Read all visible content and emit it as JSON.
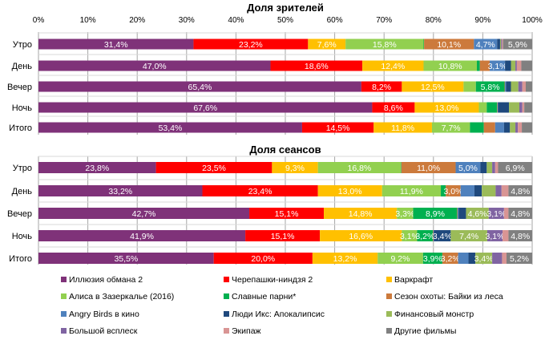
{
  "chart_data": [
    {
      "type": "bar",
      "orientation": "horizontal-stacked-100",
      "title": "Доля зрителей",
      "xlim": [
        0,
        100
      ],
      "xticks": [
        "0%",
        "10%",
        "20%",
        "30%",
        "40%",
        "50%",
        "60%",
        "70%",
        "80%",
        "90%",
        "100%"
      ],
      "categories": [
        "Утро",
        "День",
        "Вечер",
        "Ночь",
        "Итого"
      ],
      "values": [
        [
          31.4,
          23.2,
          7.6,
          15.8,
          0.1,
          10.1,
          4.7,
          0.6,
          0.2,
          0.2,
          0.2,
          5.9
        ],
        [
          47.0,
          18.6,
          12.4,
          10.8,
          0.6,
          2.0,
          3.1,
          1.2,
          0.9,
          0.3,
          0.9,
          2.2
        ],
        [
          65.4,
          8.2,
          12.5,
          2.5,
          5.8,
          0.1,
          0.2,
          1.0,
          1.5,
          0.8,
          0.7,
          1.3
        ],
        [
          67.6,
          8.6,
          13.0,
          1.6,
          2.1,
          0.1,
          0.1,
          2.2,
          2.1,
          0.6,
          0.4,
          1.6
        ],
        [
          53.4,
          14.5,
          11.8,
          7.7,
          2.8,
          2.3,
          1.8,
          1.2,
          1.1,
          0.5,
          0.8,
          2.1
        ]
      ],
      "labels": [
        [
          "31,4%",
          "23,2%",
          "7,6%",
          "15,8%",
          "",
          "10,1%",
          "4,7%",
          "",
          "",
          "",
          "",
          "5,9%"
        ],
        [
          "47,0%",
          "18,6%",
          "12,4%",
          "10,8%",
          "",
          "",
          "3,1%",
          "",
          "",
          "",
          "",
          ""
        ],
        [
          "65,4%",
          "8,2%",
          "12,5%",
          "",
          "5,8%",
          "",
          "",
          "",
          "",
          "",
          "",
          ""
        ],
        [
          "67,6%",
          "8,6%",
          "13,0%",
          "",
          "",
          "",
          "",
          "",
          "",
          "",
          "",
          ""
        ],
        [
          "53,4%",
          "14,5%",
          "11,8%",
          "7,7%",
          "",
          "",
          "",
          "",
          "",
          "",
          "",
          ""
        ]
      ]
    },
    {
      "type": "bar",
      "orientation": "horizontal-stacked-100",
      "title": "Доля сеансов",
      "xlim": [
        0,
        100
      ],
      "categories": [
        "Утро",
        "День",
        "Вечер",
        "Ночь",
        "Итого"
      ],
      "values": [
        [
          23.8,
          23.5,
          9.3,
          16.8,
          0.1,
          11.0,
          5.0,
          1.3,
          1.1,
          0.6,
          0.6,
          6.9
        ],
        [
          33.2,
          23.4,
          13.0,
          11.9,
          1.0,
          3.0,
          2.8,
          1.5,
          2.8,
          1.2,
          1.4,
          4.8
        ],
        [
          42.7,
          15.1,
          14.8,
          3.3,
          8.9,
          0.1,
          0.2,
          1.5,
          4.6,
          3.1,
          0.9,
          4.8
        ],
        [
          41.9,
          15.1,
          16.6,
          3.1,
          3.2,
          0.1,
          0.1,
          3.4,
          7.4,
          3.1,
          1.2,
          4.8
        ],
        [
          35.5,
          20.0,
          13.2,
          9.2,
          3.9,
          3.2,
          2.1,
          1.4,
          3.4,
          2.0,
          0.9,
          5.2
        ]
      ],
      "labels": [
        [
          "23,8%",
          "23,5%",
          "9,3%",
          "16,8%",
          "",
          "11,0%",
          "5,0%",
          "",
          "",
          "",
          "",
          "6,9%"
        ],
        [
          "33,2%",
          "23,4%",
          "13,0%",
          "11,9%",
          "",
          "3,0%",
          "",
          "",
          "",
          "",
          "",
          "4,8%"
        ],
        [
          "42,7%",
          "15,1%",
          "14,8%",
          "3,3%",
          "8,9%",
          "",
          "",
          "",
          "4,6%",
          "3,1%",
          "",
          "4,8%"
        ],
        [
          "41,9%",
          "15,1%",
          "16,6%",
          "3,1%",
          "3,2%",
          "",
          "",
          "3,4%",
          "7,4%",
          "3,1%",
          "",
          "4,8%"
        ],
        [
          "35,5%",
          "20,0%",
          "13,2%",
          "9,2%",
          "3,9%",
          "3,2%",
          "",
          "",
          "3,4%",
          "",
          "",
          "5,2%"
        ]
      ]
    }
  ],
  "legend": {
    "placement": "bottom",
    "series": [
      {
        "name": "Иллюзия обмана 2",
        "color": "#7F3279"
      },
      {
        "name": "Черепашки-ниндзя 2",
        "color": "#FF0000"
      },
      {
        "name": "Варкрафт",
        "color": "#FFC000"
      },
      {
        "name": "Алиса в Зазеркалье (2016)",
        "color": "#92D050"
      },
      {
        "name": "Славные парни*",
        "color": "#00B050"
      },
      {
        "name": "Сезон охоты: Байки из леса",
        "color": "#CC7A3C"
      },
      {
        "name": "Angry Birds в кино",
        "color": "#4F81BD"
      },
      {
        "name": "Люди Икс: Апокалипсис",
        "color": "#1F497D"
      },
      {
        "name": "Финансовый монстр",
        "color": "#9BBB59"
      },
      {
        "name": "Большой всплеск",
        "color": "#8064A2"
      },
      {
        "name": "Экипаж",
        "color": "#D99594"
      },
      {
        "name": "Другие фильмы",
        "color": "#808080"
      }
    ]
  }
}
